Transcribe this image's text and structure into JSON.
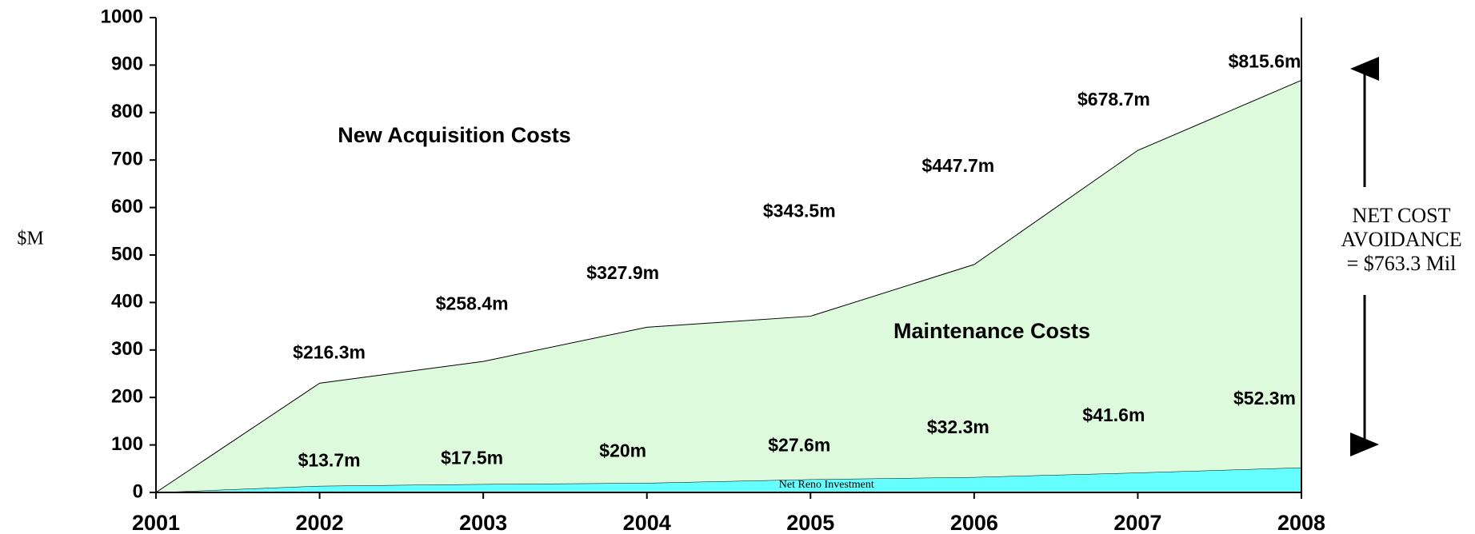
{
  "chart_data": {
    "type": "stacked-area",
    "y_label": "$M",
    "categories": [
      "2001",
      "2002",
      "2003",
      "2004",
      "2005",
      "2006",
      "2007",
      "2008"
    ],
    "series": [
      {
        "name": "Net Reno Investment",
        "color": "#66ffff",
        "values": [
          0,
          13.7,
          17.5,
          20,
          27.6,
          32.3,
          41.6,
          52.3
        ],
        "value_labels": [
          null,
          "$13.7m",
          "$17.5m",
          "$20m",
          "$27.6m",
          "$32.3m",
          "$41.6m",
          "$52.3m"
        ]
      },
      {
        "name": "Maintenance Costs",
        "color": "#ddfadd",
        "values": [
          0,
          216.3,
          258.4,
          327.9,
          343.5,
          447.7,
          678.7,
          815.6
        ],
        "value_labels": [
          null,
          "$216.3m",
          "$258.4m",
          "$327.9m",
          "$343.5m",
          "$447.7m",
          "$678.7m",
          "$815.6m"
        ]
      }
    ],
    "region_label": "New Acquisition Costs",
    "annotation": [
      "NET COST",
      "AVOIDANCE",
      "= $763.3 Mil"
    ],
    "ylim": [
      0,
      1000
    ],
    "yticks": [
      0,
      100,
      200,
      300,
      400,
      500,
      600,
      700,
      800,
      900,
      1000
    ]
  }
}
